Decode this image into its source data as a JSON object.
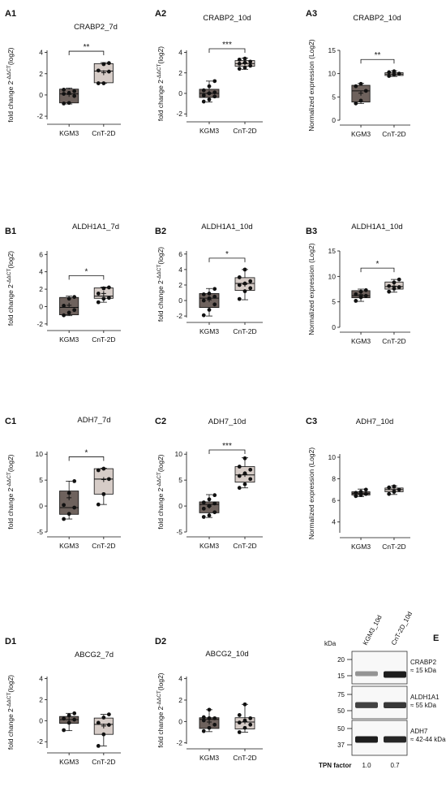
{
  "chart_data": [
    {
      "panel": "A1",
      "type": "box",
      "title": "CRABP2_7d",
      "ylabel": "fold change 2^-ΔΔCT(log2)",
      "ylim": [
        -2.3,
        4.2
      ],
      "yticks": [
        -2,
        0,
        2,
        4
      ],
      "categories": [
        "KGM3",
        "CnT-2D"
      ],
      "series": [
        {
          "values": [
            -0.8,
            -0.75,
            -0.1,
            0.1,
            0.2,
            0.35,
            0.5
          ],
          "box": {
            "min": -0.85,
            "q1": -0.75,
            "median": 0.1,
            "q3": 0.55,
            "max": 0.65
          },
          "mean": 0.05,
          "color": "#6e625d"
        },
        {
          "values": [
            1.1,
            1.1,
            2.2,
            2.3,
            2.9,
            3.0
          ],
          "box": {
            "min": 1.1,
            "q1": 1.15,
            "median": 2.25,
            "q3": 2.95,
            "max": 3.05
          },
          "mean": 2.1,
          "color": "#d6ccc7"
        }
      ],
      "significance": "**"
    },
    {
      "panel": "A2",
      "type": "box",
      "title": "CRABP2_10d",
      "ylabel": "fold change 2^-ΔΔCT(log2)",
      "ylim": [
        -2.3,
        4.2
      ],
      "yticks": [
        -2,
        0,
        2,
        4
      ],
      "categories": [
        "KGM3",
        "CnT-2D"
      ],
      "series": [
        {
          "values": [
            -0.8,
            -0.6,
            -0.3,
            -0.2,
            0.0,
            0.1,
            0.3,
            0.7,
            1.2
          ],
          "box": {
            "min": -0.85,
            "q1": -0.4,
            "median": 0.0,
            "q3": 0.4,
            "max": 1.2
          },
          "mean": 0.05,
          "color": "#6e625d"
        },
        {
          "values": [
            2.4,
            2.5,
            2.7,
            2.9,
            3.0,
            3.1,
            3.3,
            3.4
          ],
          "box": {
            "min": 2.35,
            "q1": 2.65,
            "median": 2.9,
            "q3": 3.2,
            "max": 3.45
          },
          "mean": 2.95,
          "color": "#d6ccc7"
        }
      ],
      "significance": "***"
    },
    {
      "panel": "A3",
      "type": "box",
      "title": "CRABP2_10d",
      "ylabel": "Normalized expression (Log2)",
      "ylim": [
        0,
        15
      ],
      "yticks": [
        0,
        5,
        10,
        15
      ],
      "categories": [
        "KGM3",
        "CnT-2D"
      ],
      "series": [
        {
          "values": [
            3.6,
            4.2,
            6.3,
            7.3,
            7.8
          ],
          "box": {
            "min": 3.6,
            "q1": 3.9,
            "median": 6.3,
            "q3": 7.5,
            "max": 7.9
          },
          "mean": 5.8,
          "color": "#6e625d"
        },
        {
          "values": [
            9.5,
            9.8,
            10.0,
            10.3,
            10.5
          ],
          "box": {
            "min": 9.4,
            "q1": 9.6,
            "median": 9.9,
            "q3": 10.2,
            "max": 10.6
          },
          "mean": 9.95,
          "color": "#d6ccc7"
        }
      ],
      "significance": "**"
    },
    {
      "panel": "B1",
      "type": "box",
      "title": "ALDH1A1_7d",
      "ylabel": "fold change 2^-ΔΔCT(log2)",
      "ylim": [
        -2.2,
        6.4
      ],
      "yticks": [
        -2,
        0,
        2,
        4,
        6
      ],
      "categories": [
        "KGM3",
        "CnT-2D"
      ],
      "series": [
        {
          "values": [
            -1.0,
            -0.7,
            -0.4,
            0.1,
            0.9,
            1.1
          ],
          "box": {
            "min": -1.05,
            "q1": -0.95,
            "median": -0.1,
            "q3": 1.05,
            "max": 1.2
          },
          "mean": 0.15,
          "color": "#6e625d"
        },
        {
          "values": [
            0.5,
            0.9,
            1.0,
            1.5,
            2.1,
            2.2
          ],
          "box": {
            "min": 0.5,
            "q1": 0.95,
            "median": 1.2,
            "q3": 2.15,
            "max": 2.25
          },
          "mean": 1.5,
          "color": "#d6ccc7"
        }
      ],
      "significance": "*"
    },
    {
      "panel": "B2",
      "type": "box",
      "title": "ALDH1A1_10d",
      "ylabel": "fold change 2^-ΔΔCT(log2)",
      "ylim": [
        -2.2,
        6.4
      ],
      "yticks": [
        -2,
        0,
        2,
        4,
        6
      ],
      "categories": [
        "KGM3",
        "CnT-2D"
      ],
      "series": [
        {
          "values": [
            -1.9,
            -1.2,
            -0.5,
            0.0,
            0.3,
            0.5,
            0.8,
            0.9,
            1.5
          ],
          "box": {
            "min": -2.0,
            "q1": -0.9,
            "median": 0.3,
            "q3": 0.9,
            "max": 1.55
          },
          "mean": 0.1,
          "color": "#6e625d"
        },
        {
          "values": [
            0.2,
            1.2,
            1.6,
            2.0,
            2.2,
            2.5,
            3.0,
            4.0
          ],
          "box": {
            "min": 0.1,
            "q1": 1.3,
            "median": 2.2,
            "q3": 2.95,
            "max": 4.0
          },
          "mean": 2.1,
          "color": "#d6ccc7"
        }
      ],
      "significance": "*"
    },
    {
      "panel": "B3",
      "type": "box",
      "title": "ALDH1A1_10d",
      "ylabel": "Normalized expression (Log2)",
      "ylim": [
        0,
        15
      ],
      "yticks": [
        0,
        5,
        10,
        15
      ],
      "categories": [
        "KGM3",
        "CnT-2D"
      ],
      "series": [
        {
          "values": [
            5.2,
            5.9,
            6.2,
            6.5,
            7.0,
            7.3
          ],
          "box": {
            "min": 5.1,
            "q1": 5.8,
            "median": 6.2,
            "q3": 7.2,
            "max": 7.5
          },
          "mean": 6.4,
          "color": "#6e625d"
        },
        {
          "values": [
            7.0,
            7.6,
            7.9,
            8.1,
            8.8,
            9.4
          ],
          "box": {
            "min": 6.9,
            "q1": 7.5,
            "median": 8.0,
            "q3": 8.9,
            "max": 9.4
          },
          "mean": 8.1,
          "color": "#d6ccc7"
        }
      ],
      "significance": "*"
    },
    {
      "panel": "C1",
      "type": "box",
      "title": "ADH7_7d",
      "ylabel": "fold change 2^-ΔΔCT(log2)",
      "ylim": [
        -5,
        10.5
      ],
      "yticks": [
        -5,
        0,
        5,
        10
      ],
      "categories": [
        "KGM3",
        "CnT-2D"
      ],
      "series": [
        {
          "values": [
            -2.5,
            -1.5,
            -0.3,
            0.2,
            2.5,
            4.8
          ],
          "box": {
            "min": -2.5,
            "q1": -1.6,
            "median": -0.3,
            "q3": 2.9,
            "max": 4.8
          },
          "mean": 1.6,
          "color": "#6e625d"
        },
        {
          "values": [
            0.3,
            2.3,
            5.2,
            6.9,
            7.2
          ],
          "box": {
            "min": 0.3,
            "q1": 2.3,
            "median": 5.2,
            "q3": 7.2,
            "max": 7.3
          },
          "mean": 5.1,
          "color": "#d6ccc7"
        }
      ],
      "significance": "*"
    },
    {
      "panel": "C2",
      "type": "box",
      "title": "ADH7_10d",
      "ylabel": "fold change 2^-ΔΔCT(log2)",
      "ylim": [
        -5,
        10.5
      ],
      "yticks": [
        -5,
        0,
        5,
        10
      ],
      "categories": [
        "KGM3",
        "CnT-2D"
      ],
      "series": [
        {
          "values": [
            -2.1,
            -1.8,
            -1.2,
            -0.5,
            0.0,
            0.5,
            0.7,
            1.3,
            2.1
          ],
          "box": {
            "min": -2.2,
            "q1": -1.3,
            "median": 0.3,
            "q3": 0.8,
            "max": 2.2
          },
          "mean": 0.0,
          "color": "#6e625d"
        },
        {
          "values": [
            3.5,
            4.2,
            5.2,
            5.8,
            6.3,
            7.0,
            7.6,
            9.2
          ],
          "box": {
            "min": 3.5,
            "q1": 4.6,
            "median": 6.0,
            "q3": 7.6,
            "max": 9.3
          },
          "mean": 6.1,
          "color": "#d6ccc7"
        }
      ],
      "significance": "***"
    },
    {
      "panel": "C3",
      "type": "box",
      "title": "ADH7_10d",
      "ylabel": "Normalized expression (Log2)",
      "ylim": [
        3,
        10.3
      ],
      "yticks": [
        4,
        6,
        8,
        10
      ],
      "categories": [
        "KGM3",
        "CnT-2D"
      ],
      "series": [
        {
          "values": [
            6.4,
            6.5,
            6.6,
            6.7,
            6.8,
            7.0
          ],
          "box": {
            "min": 6.35,
            "q1": 6.5,
            "median": 6.65,
            "q3": 6.8,
            "max": 7.05
          },
          "mean": 6.65,
          "color": "#6e625d"
        },
        {
          "values": [
            6.6,
            6.8,
            7.0,
            7.2,
            7.3
          ],
          "box": {
            "min": 6.55,
            "q1": 6.8,
            "median": 7.0,
            "q3": 7.15,
            "max": 7.35
          },
          "mean": 7.0,
          "color": "#d6ccc7"
        }
      ],
      "significance": ""
    },
    {
      "panel": "D1",
      "type": "box",
      "title": "ABCG2_7d",
      "ylabel": "fold change 2^-ΔΔCT(log2)",
      "ylim": [
        -2.6,
        4.2
      ],
      "yticks": [
        -2,
        0,
        2,
        4
      ],
      "categories": [
        "KGM3",
        "CnT-2D"
      ],
      "series": [
        {
          "values": [
            -0.9,
            -0.2,
            0.1,
            0.2,
            0.5,
            0.7
          ],
          "box": {
            "min": -0.95,
            "q1": -0.25,
            "median": 0.1,
            "q3": 0.4,
            "max": 0.7
          },
          "mean": 0.1,
          "color": "#6e625d"
        },
        {
          "values": [
            -2.4,
            -1.3,
            -0.4,
            -0.2,
            0.3,
            0.6
          ],
          "box": {
            "min": -2.4,
            "q1": -1.3,
            "median": -0.35,
            "q3": 0.25,
            "max": 0.6
          },
          "mean": -0.5,
          "color": "#d6ccc7"
        }
      ],
      "significance": ""
    },
    {
      "panel": "D2",
      "type": "box",
      "title": "ABCG2_10d",
      "ylabel": "fold change 2^-ΔΔCT(log2)",
      "ylim": [
        -2.1,
        4.2
      ],
      "yticks": [
        -2,
        0,
        2,
        4
      ],
      "categories": [
        "KGM3",
        "CnT-2D"
      ],
      "series": [
        {
          "values": [
            -0.9,
            -0.6,
            -0.3,
            0.1,
            0.3,
            0.3,
            0.4,
            1.1
          ],
          "box": {
            "min": -0.95,
            "q1": -0.65,
            "median": 0.2,
            "q3": 0.35,
            "max": 1.1
          },
          "mean": -0.05,
          "color": "#6e625d"
        },
        {
          "values": [
            -1.0,
            -0.6,
            -0.3,
            -0.1,
            0.1,
            0.3,
            0.6,
            1.6
          ],
          "box": {
            "min": -1.0,
            "q1": -0.7,
            "median": -0.05,
            "q3": 0.35,
            "max": 1.6
          },
          "mean": 0.0,
          "color": "#d6ccc7"
        }
      ],
      "significance": ""
    }
  ],
  "ylabel_parts": {
    "prefix": "fold change 2",
    "sup": "-ΔΔCT",
    "suffix": "(log2)"
  },
  "western_blot": {
    "panel": "E",
    "kda_label": "kDa",
    "lanes": [
      "KGM3_10d",
      "CnT-2D_10d"
    ],
    "blots": [
      {
        "markers": [
          "20",
          "15"
        ],
        "protein": "CRABP2",
        "size": "≈ 15 kDa",
        "band_intensity": [
          0.35,
          1.0
        ]
      },
      {
        "markers": [
          "75",
          "50"
        ],
        "protein": "ALDH1A1",
        "size": "≈ 55 kDa",
        "band_intensity": [
          0.8,
          0.85
        ]
      },
      {
        "markers": [
          "50",
          "37"
        ],
        "protein": "ADH7",
        "size": "≈ 42-44 kDa",
        "band_intensity": [
          1.0,
          0.95
        ]
      }
    ],
    "tpn_label": "TPN factor",
    "tpn_values": [
      "1.0",
      "0.7"
    ]
  }
}
